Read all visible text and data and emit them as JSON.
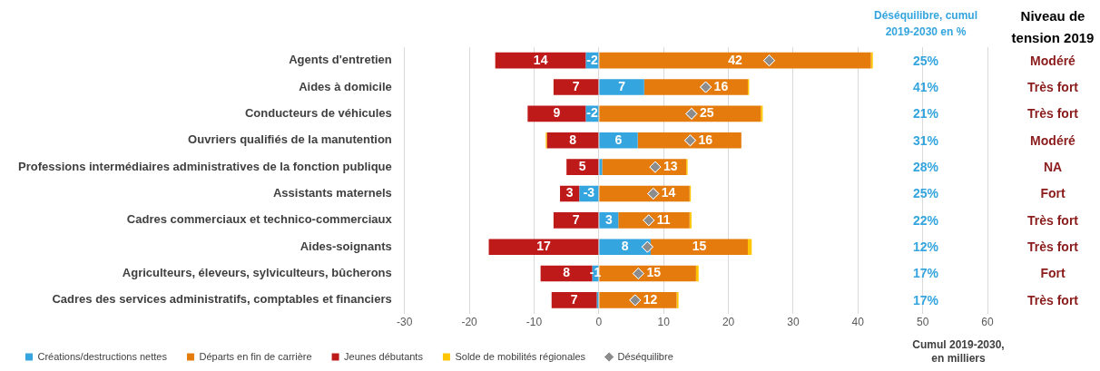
{
  "chart_data": {
    "type": "bar",
    "orientation": "horizontal",
    "stacked": true,
    "categories": [
      "Agents d'entretien",
      "Aides à domicile",
      "Conducteurs de véhicules",
      "Ouvriers qualifiés de la manutention",
      "Professions intermédiaires administratives de la fonction publique",
      "Assistants maternels",
      "Cadres commerciaux et technico-commerciaux",
      "Aides-soignants",
      "Agriculteurs, éleveurs, sylviculteurs, bûcherons",
      "Cadres des services administratifs, comptables et financiers"
    ],
    "series": [
      {
        "name": "Créations/destructions nettes",
        "color": "#35a5df",
        "values": [
          -2,
          7,
          -2,
          6,
          0.5,
          -3,
          3,
          8,
          -1,
          -0.3
        ],
        "value_labels": [
          "-2",
          "7",
          "-2",
          "6",
          null,
          "-3",
          "3",
          "8",
          "-1",
          null
        ]
      },
      {
        "name": "Départs en fin de carrière",
        "color": "#e57b0c",
        "values": [
          42,
          16,
          25,
          16,
          13,
          14,
          11,
          15,
          15,
          12
        ],
        "value_labels": [
          "42",
          "16",
          "25",
          "16",
          "13",
          "14",
          "11",
          "15",
          "15",
          "12"
        ]
      },
      {
        "name": "Jeunes débutants",
        "color": "#bf1a1a",
        "values": [
          -14,
          -7,
          -9,
          -8,
          -5,
          -3,
          -7,
          -17,
          -8,
          -7
        ]
      },
      {
        "name": "Solde de mobilités régionales",
        "color": "#ffc600",
        "values": [
          0.3,
          0.2,
          0.3,
          -0.2,
          0.2,
          0.2,
          0.3,
          0.6,
          0.4,
          0.3
        ]
      },
      {
        "name": "Déséquilibre",
        "type": "scatter",
        "color": "#8c8c8c",
        "values": [
          26.3,
          16.5,
          14.3,
          14.1,
          8.7,
          8.4,
          7.7,
          7.5,
          6.1,
          5.6
        ]
      }
    ],
    "xlim": [
      -30,
      60
    ],
    "xticks": [
      -30,
      -20,
      -10,
      0,
      10,
      20,
      30,
      40,
      50,
      60
    ],
    "xlabel": "Cumul 2019-2030, en milliers",
    "grid": "x",
    "legend": "bottom",
    "marker": "diamond",
    "annotations": [
      "Déséquilibre, cumul 2019-2030 en %",
      "Niveau de tension 2019",
      "25%",
      "41%",
      "21%",
      "31%",
      "28%",
      "25%",
      "22%",
      "12%",
      "17%",
      "17%",
      "Modéré",
      "Très fort",
      "Très fort",
      "Modéré",
      "NA",
      "Fort",
      "Très fort",
      "Très fort",
      "Fort",
      "Très fort",
      "14",
      "7",
      "9",
      "8",
      "5",
      "3",
      "7",
      "17",
      "8",
      "7"
    ]
  }
}
